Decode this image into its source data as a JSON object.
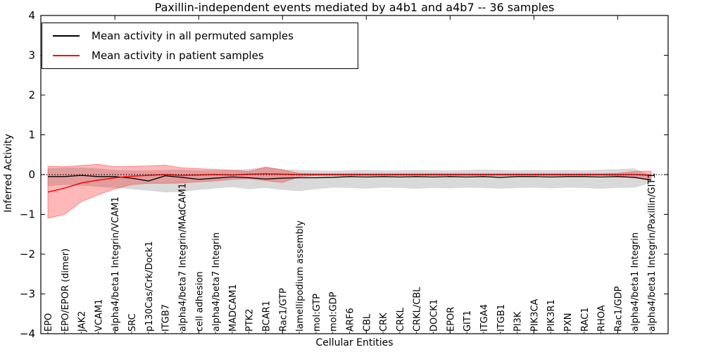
{
  "chart_data": {
    "type": "line",
    "title": "Paxillin-independent events mediated by a4b1 and a4b7 -- 36 samples",
    "xlabel": "Cellular Entities",
    "ylabel": "Inferred Activity",
    "ylim": [
      -4,
      4
    ],
    "yticks": [
      4,
      3,
      2,
      1,
      0,
      -1,
      -2,
      -3,
      -4
    ],
    "ytick_labels": [
      "4",
      "3",
      "2",
      "1",
      "0",
      "−1",
      "−2",
      "−3",
      "−4"
    ],
    "x_major_tick_positions": [
      5,
      10,
      15,
      20,
      25,
      30,
      35
    ],
    "grid": false,
    "legend_position": "upper left",
    "zero_line": {
      "y": 0,
      "style": "dotted",
      "color": "#000000"
    },
    "categories": [
      "EPO",
      "EPO/EPOR (dimer)",
      "JAK2",
      "VCAM1",
      "alpha4/beta1 Integrin/VCAM1",
      "SRC",
      "p130Cas/Crk/Dock1",
      "ITGB7",
      "alpha4/beta7 Integrin/MAdCAM1",
      "cell adhesion",
      "alpha4/beta7 Integrin",
      "MADCAM1",
      "PTK2",
      "BCAR1",
      "Rac1/GTP",
      "lamellipodium assembly",
      "mol:GTP",
      "mol:GDP",
      "ARF6",
      "CBL",
      "CRK",
      "CRKL",
      "CRKL/CBL",
      "DOCK1",
      "EPOR",
      "GIT1",
      "ITGA4",
      "ITGB1",
      "PI3K",
      "PIK3CA",
      "PIK3R1",
      "PXN",
      "RAC1",
      "RHOA",
      "Rac1/GDP",
      "alpha4/beta1 Integrin",
      "alpha4/beta1 Integrin/Paxillin/GIT1"
    ],
    "series": [
      {
        "name": "Mean activity in all permuted samples",
        "color": "#000000",
        "band_color": "rgba(0,0,0,0.15)",
        "band_edge": "rgba(0,0,0,0.06)",
        "values": [
          -0.05,
          -0.05,
          -0.02,
          -0.05,
          -0.05,
          -0.09,
          -0.16,
          -0.03,
          -0.07,
          -0.12,
          -0.09,
          -0.06,
          -0.08,
          -0.11,
          -0.09,
          -0.08,
          -0.08,
          -0.07,
          -0.05,
          -0.06,
          -0.05,
          -0.06,
          -0.05,
          -0.06,
          -0.05,
          -0.06,
          -0.05,
          -0.07,
          -0.05,
          -0.05,
          -0.06,
          -0.05,
          -0.05,
          -0.06,
          -0.05,
          -0.07,
          -0.14
        ],
        "band_upper": [
          0.15,
          0.17,
          0.17,
          0.15,
          0.11,
          0.1,
          0.1,
          0.11,
          0.12,
          0.1,
          0.1,
          0.11,
          0.14,
          0.18,
          0.13,
          0.11,
          0.1,
          0.09,
          0.1,
          0.11,
          0.1,
          0.1,
          0.11,
          0.1,
          0.1,
          0.11,
          0.12,
          0.11,
          0.1,
          0.11,
          0.1,
          0.11,
          0.1,
          0.12,
          0.13,
          0.15,
          -0.04
        ],
        "band_lower": [
          -0.29,
          -0.25,
          -0.27,
          -0.3,
          -0.33,
          -0.36,
          -0.4,
          -0.44,
          -0.43,
          -0.38,
          -0.34,
          -0.31,
          -0.36,
          -0.33,
          -0.38,
          -0.41,
          -0.36,
          -0.32,
          -0.33,
          -0.35,
          -0.32,
          -0.33,
          -0.35,
          -0.33,
          -0.34,
          -0.32,
          -0.33,
          -0.35,
          -0.33,
          -0.32,
          -0.34,
          -0.32,
          -0.33,
          -0.35,
          -0.33,
          -0.32,
          -0.2
        ]
      },
      {
        "name": "Mean activity in patient samples",
        "color": "#ff0000",
        "band_color": "rgba(255,0,0,0.28)",
        "band_edge": "rgba(230,60,60,0.45)",
        "values": [
          -0.44,
          -0.34,
          -0.21,
          -0.14,
          -0.08,
          -0.04,
          -0.02,
          0.0,
          -0.02,
          -0.01,
          0.0,
          -0.01,
          0.01,
          0.02,
          0.01,
          0.0,
          0.0,
          0.0,
          0.0,
          0.0,
          0.0,
          0.0,
          0.0,
          0.0,
          0.0,
          0.0,
          0.0,
          0.0,
          0.0,
          0.0,
          0.0,
          0.0,
          0.0,
          0.0,
          0.0,
          0.0,
          -0.02
        ],
        "band_upper": [
          0.21,
          0.2,
          0.23,
          0.26,
          0.2,
          0.21,
          0.22,
          0.24,
          0.17,
          0.15,
          0.13,
          0.11,
          0.08,
          0.19,
          0.12,
          0.03,
          0.02,
          0.02,
          0.02,
          0.02,
          0.02,
          0.02,
          0.02,
          0.02,
          0.02,
          0.02,
          0.02,
          0.02,
          0.02,
          0.02,
          0.02,
          0.02,
          0.02,
          0.02,
          0.03,
          0.08,
          0.09
        ],
        "band_lower": [
          -1.1,
          -1.0,
          -0.68,
          -0.51,
          -0.36,
          -0.25,
          -0.22,
          -0.22,
          -0.21,
          -0.18,
          -0.16,
          -0.12,
          -0.1,
          -0.15,
          -0.2,
          -0.05,
          -0.02,
          -0.02,
          -0.02,
          -0.02,
          -0.02,
          -0.02,
          -0.02,
          -0.02,
          -0.02,
          -0.02,
          -0.02,
          -0.02,
          -0.02,
          -0.02,
          -0.02,
          -0.02,
          -0.02,
          -0.02,
          -0.03,
          -0.08,
          -0.12
        ]
      }
    ]
  }
}
